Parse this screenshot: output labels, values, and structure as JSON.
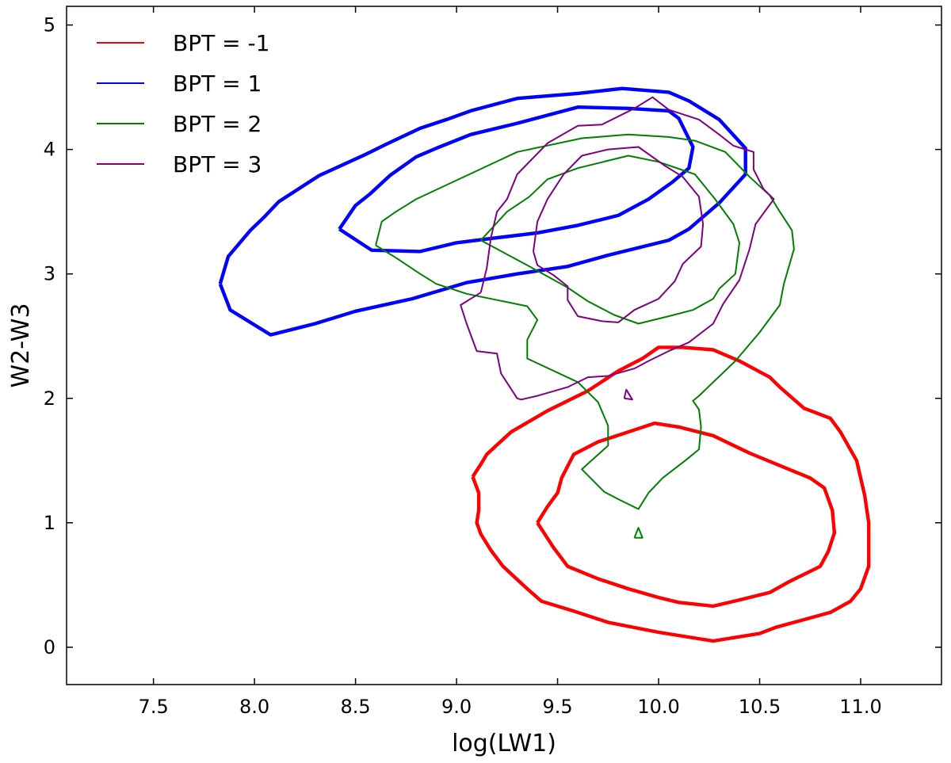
{
  "chart_data": {
    "type": "contour",
    "xlabel": "log(LW1)",
    "ylabel": "W2-W3",
    "xlim": [
      7.07,
      11.4
    ],
    "ylim": [
      -0.3,
      5.15
    ],
    "xticks": [
      "7.5",
      "8.0",
      "8.5",
      "9.0",
      "9.5",
      "10.0",
      "10.5",
      "11.0"
    ],
    "yticks": [
      "0",
      "1",
      "2",
      "3",
      "4",
      "5"
    ],
    "legend_position": "top-left",
    "series": [
      {
        "name": "BPT = -1",
        "color": "#ff0000",
        "contours": [
          [
            [
              9.08,
              1.37
            ],
            [
              9.12,
              1.47
            ],
            [
              9.15,
              1.55
            ],
            [
              9.27,
              1.73
            ],
            [
              9.45,
              1.9
            ],
            [
              9.65,
              2.06
            ],
            [
              9.8,
              2.22
            ],
            [
              9.92,
              2.32
            ],
            [
              10.0,
              2.41
            ],
            [
              10.12,
              2.41
            ],
            [
              10.27,
              2.39
            ],
            [
              10.4,
              2.3
            ],
            [
              10.55,
              2.17
            ],
            [
              10.6,
              2.09
            ],
            [
              10.72,
              1.92
            ],
            [
              10.85,
              1.84
            ],
            [
              10.9,
              1.73
            ],
            [
              10.98,
              1.5
            ],
            [
              11.02,
              1.22
            ],
            [
              11.04,
              1.0
            ],
            [
              11.04,
              0.65
            ],
            [
              11.0,
              0.47
            ],
            [
              10.95,
              0.37
            ],
            [
              10.85,
              0.28
            ],
            [
              10.58,
              0.16
            ],
            [
              10.5,
              0.11
            ],
            [
              10.27,
              0.05
            ],
            [
              10.0,
              0.12
            ],
            [
              9.75,
              0.2
            ],
            [
              9.58,
              0.29
            ],
            [
              9.42,
              0.37
            ],
            [
              9.35,
              0.47
            ],
            [
              9.23,
              0.65
            ],
            [
              9.17,
              0.78
            ],
            [
              9.12,
              0.91
            ],
            [
              9.1,
              1.0
            ],
            [
              9.11,
              1.1
            ],
            [
              9.11,
              1.24
            ],
            [
              9.08,
              1.37
            ]
          ],
          [
            [
              9.4,
              1.0
            ],
            [
              9.45,
              1.13
            ],
            [
              9.5,
              1.24
            ],
            [
              9.52,
              1.36
            ],
            [
              9.58,
              1.55
            ],
            [
              9.7,
              1.65
            ],
            [
              9.85,
              1.73
            ],
            [
              9.98,
              1.8
            ],
            [
              10.1,
              1.77
            ],
            [
              10.27,
              1.7
            ],
            [
              10.45,
              1.56
            ],
            [
              10.6,
              1.46
            ],
            [
              10.75,
              1.36
            ],
            [
              10.82,
              1.28
            ],
            [
              10.86,
              1.1
            ],
            [
              10.87,
              0.92
            ],
            [
              10.84,
              0.77
            ],
            [
              10.8,
              0.65
            ],
            [
              10.65,
              0.53
            ],
            [
              10.55,
              0.44
            ],
            [
              10.4,
              0.38
            ],
            [
              10.27,
              0.33
            ],
            [
              10.1,
              0.36
            ],
            [
              10.0,
              0.4
            ],
            [
              9.85,
              0.47
            ],
            [
              9.7,
              0.55
            ],
            [
              9.55,
              0.65
            ],
            [
              9.48,
              0.8
            ],
            [
              9.4,
              1.0
            ]
          ]
        ]
      },
      {
        "name": "BPT = 1",
        "color": "#0000ff",
        "contours": [
          [
            [
              7.83,
              2.92
            ],
            [
              7.87,
              3.14
            ],
            [
              7.98,
              3.35
            ],
            [
              8.05,
              3.46
            ],
            [
              8.12,
              3.58
            ],
            [
              8.32,
              3.79
            ],
            [
              8.55,
              3.96
            ],
            [
              8.65,
              4.04
            ],
            [
              8.82,
              4.17
            ],
            [
              8.95,
              4.24
            ],
            [
              9.07,
              4.31
            ],
            [
              9.3,
              4.41
            ],
            [
              9.6,
              4.45
            ],
            [
              9.82,
              4.49
            ],
            [
              10.05,
              4.46
            ],
            [
              10.15,
              4.39
            ],
            [
              10.3,
              4.24
            ],
            [
              10.43,
              4.01
            ],
            [
              10.43,
              3.8
            ],
            [
              10.3,
              3.57
            ],
            [
              10.15,
              3.36
            ],
            [
              10.05,
              3.27
            ],
            [
              9.75,
              3.15
            ],
            [
              9.55,
              3.06
            ],
            [
              9.3,
              3.0
            ],
            [
              9.05,
              2.93
            ],
            [
              8.78,
              2.8
            ],
            [
              8.5,
              2.7
            ],
            [
              8.3,
              2.6
            ],
            [
              8.08,
              2.51
            ],
            [
              7.88,
              2.71
            ],
            [
              7.83,
              2.92
            ]
          ],
          [
            [
              8.42,
              3.36
            ],
            [
              8.5,
              3.55
            ],
            [
              8.57,
              3.64
            ],
            [
              8.67,
              3.79
            ],
            [
              8.8,
              3.94
            ],
            [
              8.9,
              4.01
            ],
            [
              9.07,
              4.12
            ],
            [
              9.3,
              4.21
            ],
            [
              9.6,
              4.34
            ],
            [
              9.85,
              4.33
            ],
            [
              10.05,
              4.31
            ],
            [
              10.1,
              4.25
            ],
            [
              10.17,
              4.02
            ],
            [
              10.15,
              3.85
            ],
            [
              10.07,
              3.74
            ],
            [
              9.95,
              3.6
            ],
            [
              9.8,
              3.47
            ],
            [
              9.6,
              3.39
            ],
            [
              9.4,
              3.33
            ],
            [
              9.2,
              3.29
            ],
            [
              9.0,
              3.25
            ],
            [
              8.82,
              3.18
            ],
            [
              8.58,
              3.19
            ],
            [
              8.42,
              3.36
            ]
          ]
        ]
      },
      {
        "name": "BPT = 2",
        "color": "#008000",
        "contours": [
          [
            [
              8.6,
              3.23
            ],
            [
              8.63,
              3.42
            ],
            [
              8.7,
              3.5
            ],
            [
              8.8,
              3.6
            ],
            [
              9.05,
              3.79
            ],
            [
              9.3,
              3.98
            ],
            [
              9.62,
              4.09
            ],
            [
              9.85,
              4.12
            ],
            [
              10.05,
              4.1
            ],
            [
              10.18,
              4.07
            ],
            [
              10.33,
              3.98
            ],
            [
              10.45,
              3.78
            ],
            [
              10.55,
              3.63
            ],
            [
              10.6,
              3.5
            ],
            [
              10.66,
              3.35
            ],
            [
              10.67,
              3.2
            ],
            [
              10.62,
              2.92
            ],
            [
              10.6,
              2.75
            ],
            [
              10.5,
              2.53
            ],
            [
              10.38,
              2.3
            ],
            [
              10.2,
              2.02
            ],
            [
              10.17,
              1.98
            ],
            [
              10.2,
              1.91
            ],
            [
              10.21,
              1.77
            ],
            [
              10.2,
              1.59
            ],
            [
              10.14,
              1.51
            ],
            [
              10.02,
              1.36
            ],
            [
              9.95,
              1.24
            ],
            [
              9.9,
              1.11
            ],
            [
              9.8,
              1.19
            ],
            [
              9.73,
              1.25
            ],
            [
              9.62,
              1.43
            ],
            [
              9.75,
              1.62
            ],
            [
              9.75,
              1.78
            ],
            [
              9.7,
              1.97
            ],
            [
              9.6,
              2.13
            ],
            [
              9.35,
              2.32
            ],
            [
              9.35,
              2.47
            ],
            [
              9.4,
              2.63
            ],
            [
              9.35,
              2.74
            ],
            [
              9.05,
              2.84
            ],
            [
              8.9,
              2.92
            ],
            [
              8.82,
              3.0
            ],
            [
              8.7,
              3.13
            ],
            [
              8.6,
              3.23
            ]
          ],
          [
            [
              9.12,
              3.27
            ],
            [
              9.25,
              3.5
            ],
            [
              9.36,
              3.62
            ],
            [
              9.45,
              3.76
            ],
            [
              9.6,
              3.85
            ],
            [
              9.85,
              3.95
            ],
            [
              10.0,
              3.9
            ],
            [
              10.18,
              3.8
            ],
            [
              10.28,
              3.6
            ],
            [
              10.37,
              3.4
            ],
            [
              10.4,
              3.25
            ],
            [
              10.38,
              3.0
            ],
            [
              10.3,
              2.88
            ],
            [
              10.27,
              2.8
            ],
            [
              10.17,
              2.71
            ],
            [
              10.05,
              2.66
            ],
            [
              9.9,
              2.6
            ],
            [
              9.78,
              2.67
            ],
            [
              9.65,
              2.78
            ],
            [
              9.55,
              2.89
            ],
            [
              9.35,
              3.07
            ],
            [
              9.12,
              3.27
            ]
          ],
          [
            [
              9.88,
              0.88
            ],
            [
              9.9,
              0.96
            ],
            [
              9.92,
              0.88
            ],
            [
              9.88,
              0.88
            ]
          ]
        ]
      },
      {
        "name": "BPT = 3",
        "color": "#800080",
        "contours": [
          [
            [
              9.12,
              2.85
            ],
            [
              9.15,
              3.05
            ],
            [
              9.17,
              3.29
            ],
            [
              9.2,
              3.5
            ],
            [
              9.25,
              3.6
            ],
            [
              9.3,
              3.8
            ],
            [
              9.45,
              4.05
            ],
            [
              9.6,
              4.19
            ],
            [
              9.72,
              4.2
            ],
            [
              9.88,
              4.33
            ],
            [
              9.97,
              4.42
            ],
            [
              10.05,
              4.32
            ],
            [
              10.2,
              4.24
            ],
            [
              10.3,
              4.12
            ],
            [
              10.37,
              4.03
            ],
            [
              10.47,
              3.98
            ],
            [
              10.47,
              3.84
            ],
            [
              10.52,
              3.68
            ],
            [
              10.57,
              3.6
            ],
            [
              10.48,
              3.4
            ],
            [
              10.45,
              3.2
            ],
            [
              10.4,
              2.95
            ],
            [
              10.32,
              2.76
            ],
            [
              10.27,
              2.6
            ],
            [
              10.15,
              2.45
            ],
            [
              10.05,
              2.38
            ],
            [
              9.95,
              2.3
            ],
            [
              9.88,
              2.24
            ],
            [
              9.75,
              2.18
            ],
            [
              9.65,
              2.17
            ],
            [
              9.55,
              2.09
            ],
            [
              9.4,
              2.02
            ],
            [
              9.32,
              1.99
            ],
            [
              9.3,
              2.0
            ],
            [
              9.22,
              2.2
            ],
            [
              9.2,
              2.36
            ],
            [
              9.1,
              2.38
            ],
            [
              9.05,
              2.6
            ],
            [
              9.02,
              2.75
            ],
            [
              9.12,
              2.85
            ]
          ],
          [
            [
              9.38,
              3.18
            ],
            [
              9.4,
              3.42
            ],
            [
              9.45,
              3.6
            ],
            [
              9.53,
              3.8
            ],
            [
              9.62,
              3.95
            ],
            [
              9.75,
              4.0
            ],
            [
              9.9,
              4.02
            ],
            [
              10.03,
              3.87
            ],
            [
              10.12,
              3.78
            ],
            [
              10.2,
              3.62
            ],
            [
              10.22,
              3.4
            ],
            [
              10.21,
              3.22
            ],
            [
              10.12,
              3.08
            ],
            [
              10.08,
              2.94
            ],
            [
              10.0,
              2.8
            ],
            [
              9.88,
              2.71
            ],
            [
              9.8,
              2.61
            ],
            [
              9.72,
              2.62
            ],
            [
              9.6,
              2.66
            ],
            [
              9.55,
              2.79
            ],
            [
              9.55,
              2.9
            ],
            [
              9.48,
              2.99
            ],
            [
              9.4,
              3.07
            ],
            [
              9.38,
              3.18
            ]
          ],
          [
            [
              9.83,
              2.0
            ],
            [
              9.84,
              2.07
            ],
            [
              9.87,
              1.99
            ],
            [
              9.83,
              2.0
            ]
          ]
        ]
      }
    ]
  }
}
